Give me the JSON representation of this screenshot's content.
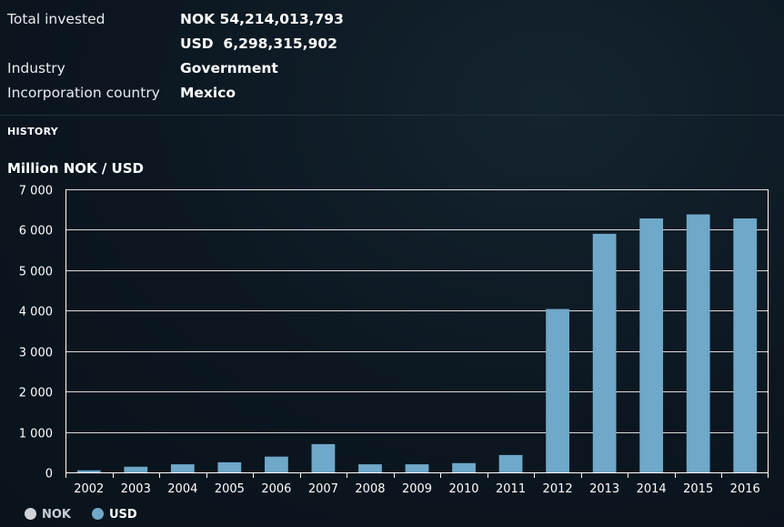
{
  "info": {
    "total_invested_label": "Total invested",
    "total_nok": "NOK 54,214,013,793",
    "total_usd": "USD  6,298,315,902",
    "industry_label": "Industry",
    "industry_value": "Government",
    "country_label": "Incorporation country",
    "country_value": "Mexico"
  },
  "section_title": "HISTORY",
  "colors": {
    "usd_bar": "#6fa8c8",
    "nok_dot": "#d0d4d8",
    "grid": "#ffffff",
    "axis_text": "#ffffff"
  },
  "chart_data": {
    "type": "bar",
    "title": "",
    "ylabel": "Million NOK / USD",
    "xlabel": "",
    "ylim": [
      0,
      7000
    ],
    "yticks": [
      0,
      1000,
      2000,
      3000,
      4000,
      5000,
      6000,
      7000
    ],
    "ytick_labels": [
      "0",
      "1 000",
      "2 000",
      "3 000",
      "4 000",
      "5 000",
      "6 000",
      "7 000"
    ],
    "categories": [
      "2002",
      "2003",
      "2004",
      "2005",
      "2006",
      "2007",
      "2008",
      "2009",
      "2010",
      "2011",
      "2012",
      "2013",
      "2014",
      "2015",
      "2016"
    ],
    "series": [
      {
        "name": "USD",
        "values": [
          50,
          140,
          200,
          250,
          390,
          700,
          200,
          200,
          230,
          430,
          4040,
          5900,
          6280,
          6380,
          6280
        ]
      }
    ],
    "legend": [
      {
        "name": "NOK",
        "color": "#d0d4d8"
      },
      {
        "name": "USD",
        "color": "#6fa8c8"
      }
    ],
    "legend_position": "bottom-left",
    "grid": true
  }
}
